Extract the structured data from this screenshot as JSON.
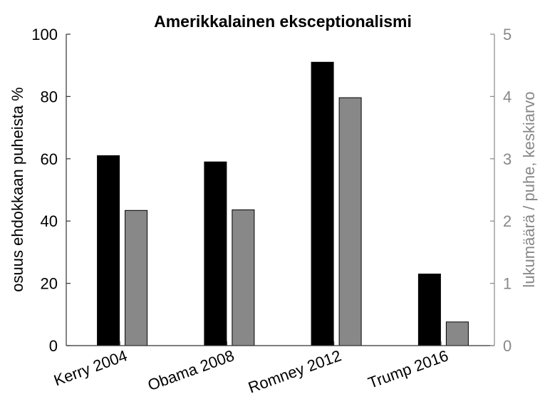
{
  "chart_data": {
    "type": "bar",
    "title": "Amerikkalainen eksceptionalismi",
    "categories": [
      "Kerry 2004",
      "Obama 2008",
      "Romney 2012",
      "Trump 2016"
    ],
    "series": [
      {
        "axis": "left",
        "color": "#000000",
        "values": [
          61,
          59,
          91,
          23
        ]
      },
      {
        "axis": "right",
        "color": "#888888",
        "values": [
          2.17,
          2.18,
          3.98,
          0.38
        ]
      }
    ],
    "ylabel": "osuus ehdokkaan puheista %",
    "ylim": [
      0,
      100
    ],
    "yticks": [
      "0",
      "20",
      "40",
      "60",
      "80",
      "100"
    ],
    "y2label": "lukumäärä / puhe, keskiarvo",
    "y2lim": [
      0,
      5
    ],
    "y2ticks": [
      "0",
      "1",
      "2",
      "3",
      "4",
      "5"
    ],
    "y2_color": "#888888",
    "grid": false,
    "legend": "none"
  }
}
